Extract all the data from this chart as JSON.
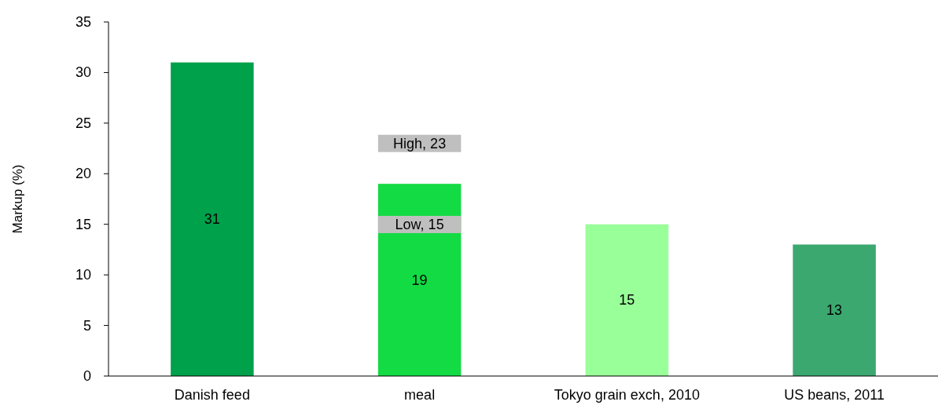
{
  "chart_data": {
    "type": "bar",
    "ylabel": "Markup (%)",
    "categories": [
      "Danish feed",
      "meal",
      "Tokyo grain exch, 2010",
      "US beans, 2011"
    ],
    "values": [
      31,
      19,
      15,
      13
    ],
    "colors": [
      "#00a14b",
      "#13db44",
      "#99ff99",
      "#3aa86f"
    ],
    "ylim": [
      0,
      35
    ],
    "yticks": [
      0,
      5,
      10,
      15,
      20,
      25,
      30,
      35
    ],
    "grid": false,
    "data_labels": true,
    "annotations": [
      "High, 23",
      "Low, 15"
    ]
  }
}
